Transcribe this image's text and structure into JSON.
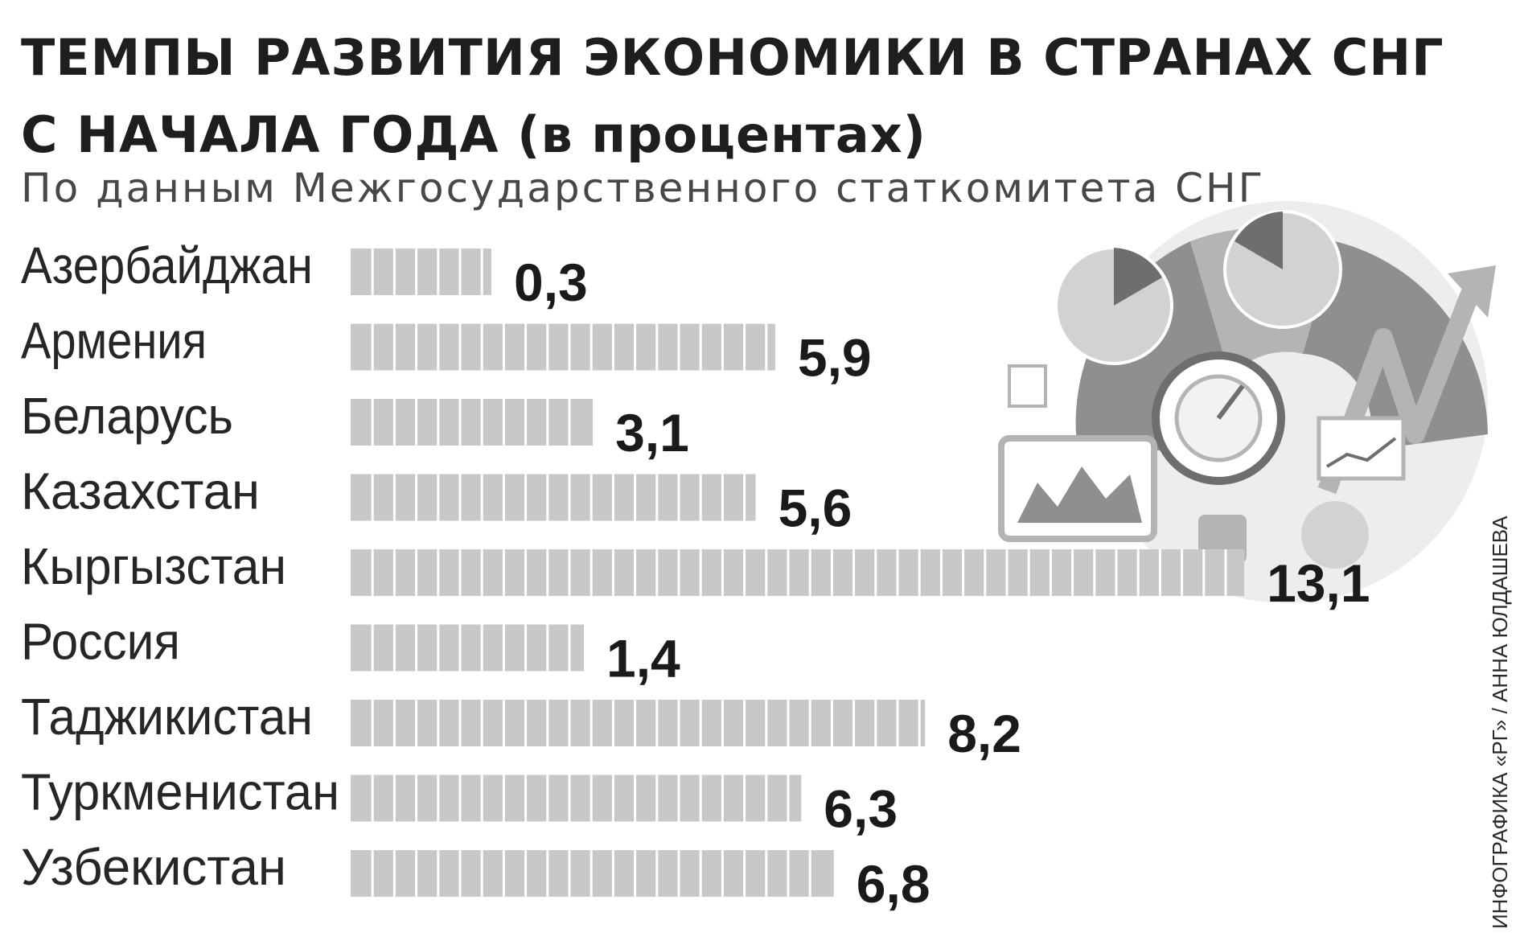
{
  "title": {
    "line1": "ТЕМПЫ РАЗВИТИЯ ЭКОНОМИКИ В СТРАНАХ СНГ",
    "line2": "С НАЧАЛА ГОДА (в процентах)"
  },
  "subtitle": "По данным Межгосударственного статкомитета СНГ",
  "credit": "ИНФОГРАФИКА «РГ» / АННА ЮЛДАШЕВА",
  "colors": {
    "bar": "#c8c8c8",
    "bar_divider": "#ffffff",
    "value_text": "#1a1a1a",
    "label_text": "#262626",
    "illustration": "#9a9a9a"
  },
  "chart_data": {
    "type": "bar",
    "orientation": "horizontal",
    "title": "ТЕМПЫ РАЗВИТИЯ ЭКОНОМИКИ В СТРАНАХ СНГ С НАЧАЛА ГОДА (в процентах)",
    "subtitle": "По данным Межгосударственного статкомитета СНГ",
    "categories": [
      "Азербайджан",
      "Армения",
      "Беларусь",
      "Казахстан",
      "Кыргызстан",
      "Россия",
      "Таджикистан",
      "Туркменистан",
      "Узбекистан"
    ],
    "values": [
      0.3,
      5.9,
      3.1,
      5.6,
      13.1,
      1.4,
      8.2,
      6.3,
      6.8
    ],
    "value_labels": [
      "0,3",
      "5,9",
      "3,1",
      "5,6",
      "13,1",
      "1,4",
      "8,2",
      "6,3",
      "6,8"
    ],
    "xlabel": "",
    "ylabel": "",
    "grid": false,
    "legend": "none"
  }
}
